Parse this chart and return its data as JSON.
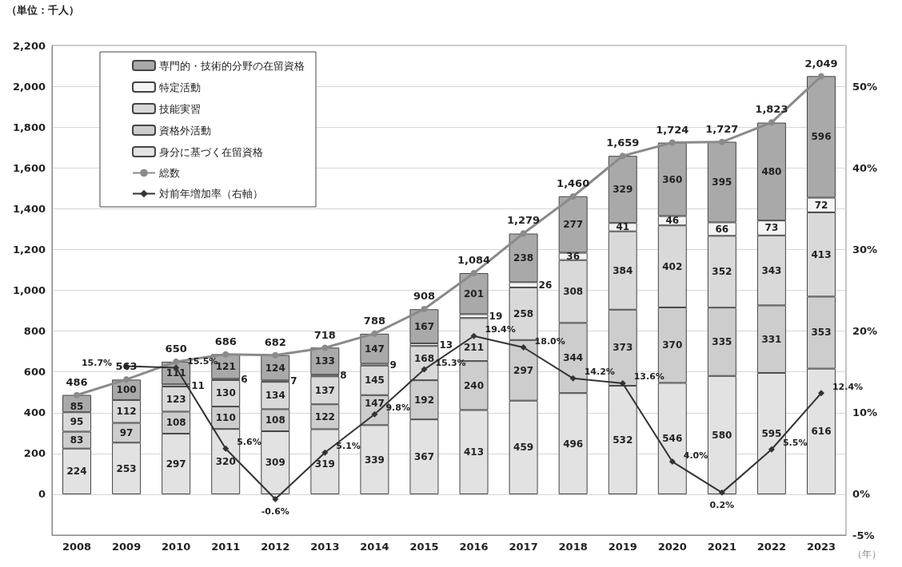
{
  "chart_data": {
    "type": "bar",
    "stacked": true,
    "categories": [
      "2008",
      "2009",
      "2010",
      "2011",
      "2012",
      "2013",
      "2014",
      "2015",
      "2016",
      "2017",
      "2018",
      "2019",
      "2020",
      "2021",
      "2022",
      "2023"
    ],
    "xlabel": "（年）",
    "annotations": [
      "（単位：千人）"
    ],
    "series": [
      {
        "name": "身分に基づく在留資格",
        "color": "#e2e2e2",
        "values": [
          224,
          253,
          297,
          320,
          309,
          319,
          339,
          367,
          413,
          459,
          496,
          532,
          546,
          580,
          595,
          616
        ],
        "value_labels": [
          "224",
          "253",
          "297",
          "320",
          "309",
          "319",
          "339",
          "367",
          "413",
          "459",
          "496",
          "532",
          "546",
          "580",
          "595",
          "616"
        ]
      },
      {
        "name": "資格外活動",
        "color": "#cdcdcd",
        "values": [
          83,
          97,
          108,
          110,
          108,
          122,
          147,
          192,
          240,
          297,
          344,
          373,
          370,
          335,
          331,
          353
        ],
        "value_labels": [
          "83",
          "97",
          "108",
          "110",
          "108",
          "122",
          "147",
          "192",
          "240",
          "297",
          "344",
          "373",
          "370",
          "335",
          "331",
          "353"
        ]
      },
      {
        "name": "技能実習",
        "color": "#d9d9d9",
        "values": [
          95,
          112,
          123,
          130,
          134,
          137,
          145,
          168,
          211,
          258,
          308,
          384,
          402,
          352,
          343,
          413
        ],
        "value_labels": [
          "95",
          "112",
          "123",
          "130",
          "134",
          "137",
          "145",
          "168",
          "211",
          "258",
          "308",
          "384",
          "402",
          "352",
          "343",
          "413"
        ]
      },
      {
        "name": "特定活動",
        "color": "#f4f4f4",
        "values": [
          null,
          null,
          11,
          6,
          7,
          8,
          9,
          13,
          19,
          26,
          36,
          41,
          46,
          66,
          73,
          72
        ],
        "value_labels": [
          null,
          null,
          "11",
          "6",
          "7",
          "8",
          "9",
          "13",
          "19",
          "26",
          "36",
          "41",
          "46",
          "66",
          "73",
          "72"
        ]
      },
      {
        "name": "専門的・技術的分野の在留資格",
        "color": "#a9a9a9",
        "values": [
          85,
          100,
          111,
          121,
          124,
          133,
          147,
          167,
          201,
          238,
          277,
          329,
          360,
          395,
          480,
          596
        ],
        "value_labels": [
          "85",
          "100",
          "111",
          "121",
          "124",
          "133",
          "147",
          "167",
          "201",
          "238",
          "277",
          "329",
          "360",
          "395",
          "480",
          "596"
        ]
      },
      {
        "name": "総数",
        "type": "line",
        "color": "#8a8a8a",
        "marker": "circle",
        "values": [
          486,
          563,
          650,
          686,
          682,
          718,
          788,
          908,
          1084,
          1279,
          1460,
          1659,
          1724,
          1727,
          1823,
          2049
        ],
        "value_labels": [
          "486",
          "563",
          "650",
          "686",
          "682",
          "718",
          "788",
          "908",
          "1,084",
          "1,279",
          "1,460",
          "1,659",
          "1,724",
          "1,727",
          "1,823",
          "2,049"
        ]
      },
      {
        "name": "対前年増加率（右軸）",
        "type": "line",
        "axis": "y2",
        "color": "#333333",
        "marker": "diamond",
        "values": [
          null,
          15.7,
          15.5,
          5.6,
          -0.6,
          5.1,
          9.8,
          15.3,
          19.4,
          18.0,
          14.2,
          13.6,
          4.0,
          0.2,
          5.5,
          12.4
        ],
        "value_labels": [
          null,
          "15.7%",
          "15.5%",
          "5.6%",
          "-0.6%",
          "5.1%",
          "9.8%",
          "15.3%",
          "19.4%",
          "18.0%",
          "14.2%",
          "13.6%",
          "4.0%",
          "0.2%",
          "5.5%",
          "12.4%"
        ]
      }
    ],
    "ylim": [
      -200,
      2200
    ],
    "yticks": [
      0,
      200,
      400,
      600,
      800,
      {
        "value": 1000,
        "label": "1,000"
      },
      {
        "value": 1200,
        "label": "1,200"
      },
      {
        "value": 1400,
        "label": "1,400"
      },
      {
        "value": 1600,
        "label": "1,600"
      },
      {
        "value": 1800,
        "label": "1,800"
      },
      {
        "value": 2000,
        "label": "2,000"
      },
      {
        "value": 2200,
        "label": "2,200"
      }
    ],
    "y2lim": [
      -5,
      55
    ],
    "y2ticks": [
      {
        "value": -5,
        "label": "-5%"
      },
      {
        "value": 0,
        "label": "0%"
      },
      {
        "value": 10,
        "label": "10%"
      },
      {
        "value": 20,
        "label": "20%"
      },
      {
        "value": 30,
        "label": "30%"
      },
      {
        "value": 40,
        "label": "40%"
      },
      {
        "value": 50,
        "label": "50%"
      }
    ],
    "grid": "y",
    "legend": "top left"
  }
}
